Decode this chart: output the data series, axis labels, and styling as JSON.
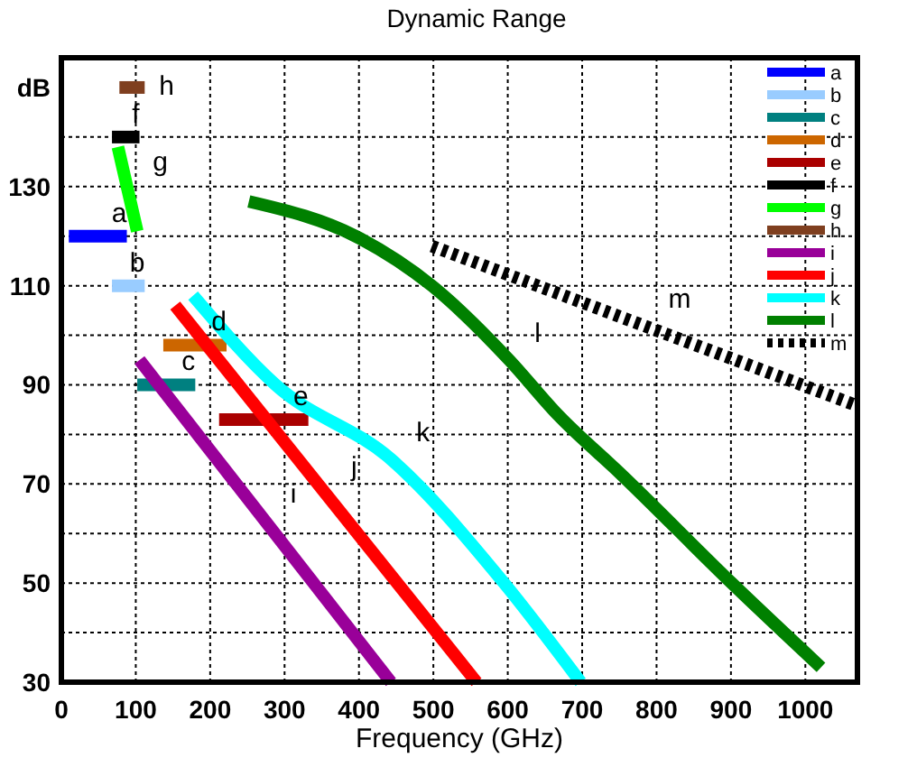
{
  "chart_data": {
    "type": "line",
    "title": "Dynamic Range",
    "xlabel": "Frequency  (GHz)",
    "ylabel": "dB",
    "xlim": [
      0,
      1070
    ],
    "xticks": [
      0,
      100,
      200,
      300,
      400,
      500,
      600,
      700,
      800,
      900,
      1000
    ],
    "ylim": [
      30,
      156
    ],
    "yticks": [
      30,
      {
        "value": 40,
        "label": null
      },
      50,
      {
        "value": 60,
        "label": null
      },
      70,
      {
        "value": 80,
        "label": null
      },
      90,
      {
        "value": 100,
        "label": null
      },
      110,
      {
        "value": 120,
        "label": null
      },
      130,
      {
        "value": 140,
        "label": null
      }
    ],
    "grid": true,
    "legend": "top right",
    "line_style": "solid",
    "series": [
      {
        "name": "a",
        "color": "#0000ff",
        "x": [
          10,
          88
        ],
        "values": [
          120,
          120
        ]
      },
      {
        "name": "b",
        "color": "#99ccff",
        "x": [
          68,
          112
        ],
        "values": [
          110,
          110
        ]
      },
      {
        "name": "c",
        "color": "#008080",
        "x": [
          102,
          180
        ],
        "values": [
          90,
          90
        ]
      },
      {
        "name": "d",
        "color": "#cc6600",
        "x": [
          137,
          222
        ],
        "values": [
          98,
          98
        ]
      },
      {
        "name": "e",
        "color": "#aa0000",
        "x": [
          212,
          332
        ],
        "values": [
          83,
          83
        ]
      },
      {
        "name": "f",
        "color": "#000000",
        "x": [
          68,
          105
        ],
        "values": [
          140,
          140
        ]
      },
      {
        "name": "g",
        "color": "#00ff00",
        "x": [
          76,
          102
        ],
        "values": [
          138,
          121
        ]
      },
      {
        "name": "h",
        "color": "#7f3f1f",
        "x": [
          78,
          112
        ],
        "values": [
          150,
          150
        ]
      },
      {
        "name": "i",
        "color": "#990099",
        "x": [
          105,
          443
        ],
        "values": [
          95,
          30
        ]
      },
      {
        "name": "j",
        "color": "#ff0000",
        "x": [
          153,
          558
        ],
        "values": [
          106,
          30
        ]
      },
      {
        "name": "k",
        "color": "#00ffff",
        "x": [
          177,
          288,
          443,
          595,
          698
        ],
        "values": [
          108,
          90,
          75,
          50,
          30
        ]
      },
      {
        "name": "l",
        "color": "#008000",
        "x": [
          252,
          402,
          498,
          602,
          667,
          752,
          901,
          1021
        ],
        "values": [
          127,
          119.5,
          110,
          95,
          84,
          72,
          50,
          33
        ]
      },
      {
        "name": "m",
        "color": "#000000",
        "line_style": "dotted",
        "x": [
          498,
          1066
        ],
        "values": [
          118,
          86
        ]
      }
    ]
  }
}
